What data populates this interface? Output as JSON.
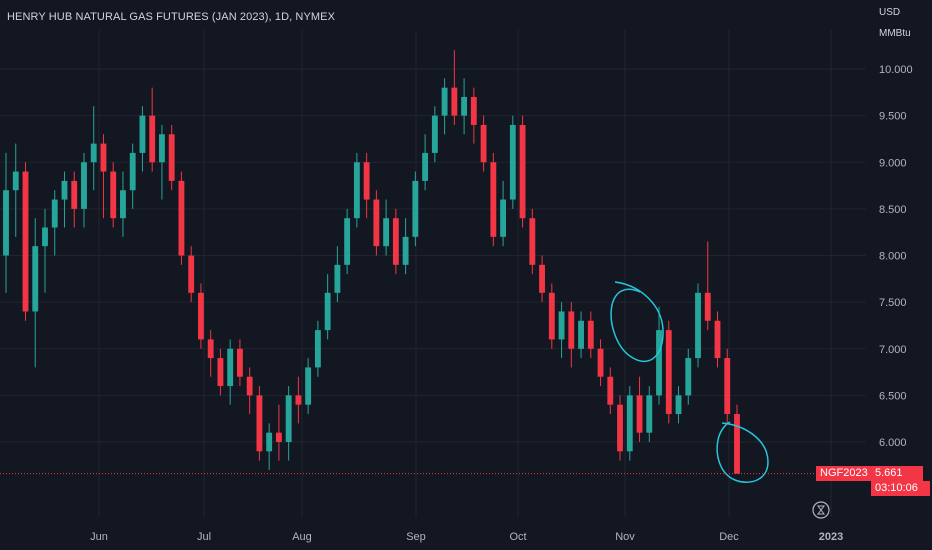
{
  "chart_data": {
    "type": "candlestick",
    "title": "HENRY HUB NATURAL GAS FUTURES (JAN 2023), 1D, NYMEX",
    "currency": "USD",
    "unit": "MMBtu",
    "ylim": [
      5.5,
      10.35
    ],
    "y_ticks": [
      "6.000",
      "6.500",
      "7.000",
      "7.500",
      "8.000",
      "8.500",
      "9.000",
      "9.500",
      "10.000"
    ],
    "x_ticks": [
      "Jun",
      "Jul",
      "Aug",
      "Sep",
      "Oct",
      "Nov",
      "Dec",
      "2023"
    ],
    "last_price": {
      "symbol": "NGF2023",
      "value": "5.661",
      "countdown": "03:10:06"
    },
    "grid": true,
    "colors": {
      "up": "#26a69a",
      "down": "#f23645",
      "annotation": "#26c6da",
      "background": "#131722"
    },
    "annotations": [
      {
        "shape": "hand-drawn circle",
        "around": "early-Nov spike high ~7.45"
      },
      {
        "shape": "hand-drawn circle",
        "around": "early-Dec low ~5.66"
      }
    ],
    "candles": [
      {
        "o": 8.0,
        "h": 9.1,
        "l": 7.6,
        "c": 8.7
      },
      {
        "o": 8.7,
        "h": 9.2,
        "l": 8.2,
        "c": 8.9
      },
      {
        "o": 8.9,
        "h": 9.0,
        "l": 7.3,
        "c": 7.4
      },
      {
        "o": 7.4,
        "h": 8.4,
        "l": 6.8,
        "c": 8.1
      },
      {
        "o": 8.1,
        "h": 8.5,
        "l": 7.6,
        "c": 8.3
      },
      {
        "o": 8.3,
        "h": 8.7,
        "l": 8.0,
        "c": 8.6
      },
      {
        "o": 8.6,
        "h": 8.9,
        "l": 8.3,
        "c": 8.8
      },
      {
        "o": 8.8,
        "h": 8.9,
        "l": 8.3,
        "c": 8.5
      },
      {
        "o": 8.5,
        "h": 9.1,
        "l": 8.3,
        "c": 9.0
      },
      {
        "o": 9.0,
        "h": 9.6,
        "l": 8.7,
        "c": 9.2
      },
      {
        "o": 9.2,
        "h": 9.3,
        "l": 8.4,
        "c": 8.9
      },
      {
        "o": 8.9,
        "h": 9.0,
        "l": 8.3,
        "c": 8.4
      },
      {
        "o": 8.4,
        "h": 8.9,
        "l": 8.2,
        "c": 8.7
      },
      {
        "o": 8.7,
        "h": 9.2,
        "l": 8.5,
        "c": 9.1
      },
      {
        "o": 9.1,
        "h": 9.6,
        "l": 8.9,
        "c": 9.5
      },
      {
        "o": 9.5,
        "h": 9.8,
        "l": 8.9,
        "c": 9.0
      },
      {
        "o": 9.0,
        "h": 9.4,
        "l": 8.6,
        "c": 9.3
      },
      {
        "o": 9.3,
        "h": 9.4,
        "l": 8.7,
        "c": 8.8
      },
      {
        "o": 8.8,
        "h": 8.9,
        "l": 7.9,
        "c": 8.0
      },
      {
        "o": 8.0,
        "h": 8.1,
        "l": 7.5,
        "c": 7.6
      },
      {
        "o": 7.6,
        "h": 7.7,
        "l": 7.0,
        "c": 7.1
      },
      {
        "o": 7.1,
        "h": 7.2,
        "l": 6.7,
        "c": 6.9
      },
      {
        "o": 6.9,
        "h": 7.0,
        "l": 6.5,
        "c": 6.6
      },
      {
        "o": 6.6,
        "h": 7.1,
        "l": 6.4,
        "c": 7.0
      },
      {
        "o": 7.0,
        "h": 7.1,
        "l": 6.6,
        "c": 6.7
      },
      {
        "o": 6.7,
        "h": 6.8,
        "l": 6.3,
        "c": 6.5
      },
      {
        "o": 6.5,
        "h": 6.6,
        "l": 5.8,
        "c": 5.9
      },
      {
        "o": 5.9,
        "h": 6.2,
        "l": 5.7,
        "c": 6.1
      },
      {
        "o": 6.1,
        "h": 6.4,
        "l": 5.8,
        "c": 6.0
      },
      {
        "o": 6.0,
        "h": 6.6,
        "l": 5.8,
        "c": 6.5
      },
      {
        "o": 6.5,
        "h": 6.7,
        "l": 6.2,
        "c": 6.4
      },
      {
        "o": 6.4,
        "h": 6.9,
        "l": 6.3,
        "c": 6.8
      },
      {
        "o": 6.8,
        "h": 7.3,
        "l": 6.7,
        "c": 7.2
      },
      {
        "o": 7.2,
        "h": 7.8,
        "l": 7.1,
        "c": 7.6
      },
      {
        "o": 7.6,
        "h": 8.1,
        "l": 7.5,
        "c": 7.9
      },
      {
        "o": 7.9,
        "h": 8.5,
        "l": 7.8,
        "c": 8.4
      },
      {
        "o": 8.4,
        "h": 9.1,
        "l": 8.3,
        "c": 9.0
      },
      {
        "o": 9.0,
        "h": 9.1,
        "l": 8.4,
        "c": 8.6
      },
      {
        "o": 8.6,
        "h": 8.7,
        "l": 8.0,
        "c": 8.1
      },
      {
        "o": 8.1,
        "h": 8.6,
        "l": 8.0,
        "c": 8.4
      },
      {
        "o": 8.4,
        "h": 8.5,
        "l": 7.8,
        "c": 7.9
      },
      {
        "o": 7.9,
        "h": 8.4,
        "l": 7.8,
        "c": 8.2
      },
      {
        "o": 8.2,
        "h": 8.9,
        "l": 8.1,
        "c": 8.8
      },
      {
        "o": 8.8,
        "h": 9.3,
        "l": 8.7,
        "c": 9.1
      },
      {
        "o": 9.1,
        "h": 9.6,
        "l": 9.0,
        "c": 9.5
      },
      {
        "o": 9.5,
        "h": 9.9,
        "l": 9.3,
        "c": 9.8
      },
      {
        "o": 9.8,
        "h": 10.2,
        "l": 9.4,
        "c": 9.5
      },
      {
        "o": 9.5,
        "h": 9.9,
        "l": 9.3,
        "c": 9.7
      },
      {
        "o": 9.7,
        "h": 9.8,
        "l": 9.2,
        "c": 9.4
      },
      {
        "o": 9.4,
        "h": 9.5,
        "l": 8.9,
        "c": 9.0
      },
      {
        "o": 9.0,
        "h": 9.1,
        "l": 8.1,
        "c": 8.2
      },
      {
        "o": 8.2,
        "h": 8.8,
        "l": 8.1,
        "c": 8.6
      },
      {
        "o": 8.6,
        "h": 9.5,
        "l": 8.5,
        "c": 9.4
      },
      {
        "o": 9.4,
        "h": 9.5,
        "l": 8.3,
        "c": 8.4
      },
      {
        "o": 8.4,
        "h": 8.5,
        "l": 7.8,
        "c": 7.9
      },
      {
        "o": 7.9,
        "h": 8.0,
        "l": 7.5,
        "c": 7.6
      },
      {
        "o": 7.6,
        "h": 7.7,
        "l": 7.0,
        "c": 7.1
      },
      {
        "o": 7.1,
        "h": 7.5,
        "l": 6.9,
        "c": 7.4
      },
      {
        "o": 7.4,
        "h": 7.5,
        "l": 6.8,
        "c": 7.0
      },
      {
        "o": 7.0,
        "h": 7.4,
        "l": 6.9,
        "c": 7.3
      },
      {
        "o": 7.3,
        "h": 7.4,
        "l": 6.9,
        "c": 7.0
      },
      {
        "o": 7.0,
        "h": 7.1,
        "l": 6.6,
        "c": 6.7
      },
      {
        "o": 6.7,
        "h": 6.8,
        "l": 6.3,
        "c": 6.4
      },
      {
        "o": 6.4,
        "h": 6.5,
        "l": 5.8,
        "c": 5.9
      },
      {
        "o": 5.9,
        "h": 6.6,
        "l": 5.8,
        "c": 6.5
      },
      {
        "o": 6.5,
        "h": 6.7,
        "l": 6.0,
        "c": 6.1
      },
      {
        "o": 6.1,
        "h": 6.6,
        "l": 6.0,
        "c": 6.5
      },
      {
        "o": 6.5,
        "h": 7.45,
        "l": 6.4,
        "c": 7.2
      },
      {
        "o": 7.2,
        "h": 7.3,
        "l": 6.2,
        "c": 6.3
      },
      {
        "o": 6.3,
        "h": 6.6,
        "l": 6.2,
        "c": 6.5
      },
      {
        "o": 6.5,
        "h": 7.0,
        "l": 6.4,
        "c": 6.9
      },
      {
        "o": 6.9,
        "h": 7.7,
        "l": 6.8,
        "c": 7.6
      },
      {
        "o": 7.6,
        "h": 8.15,
        "l": 7.2,
        "c": 7.3
      },
      {
        "o": 7.3,
        "h": 7.4,
        "l": 6.8,
        "c": 6.9
      },
      {
        "o": 6.9,
        "h": 7.0,
        "l": 6.2,
        "c": 6.3
      },
      {
        "o": 6.3,
        "h": 6.4,
        "l": 5.66,
        "c": 5.66
      }
    ]
  }
}
